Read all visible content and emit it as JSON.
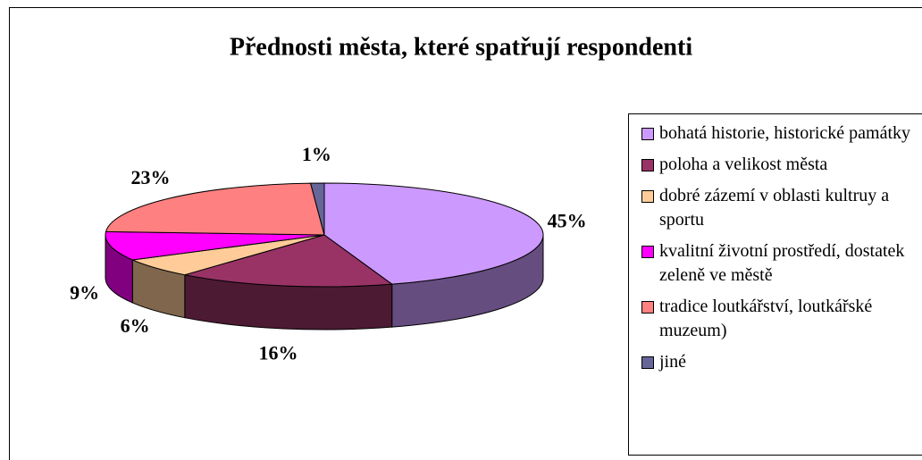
{
  "chart_data": {
    "type": "pie",
    "title": "Přednosti města, které spatřují respondenti",
    "categories": [
      "bohatá historie, historické památky",
      "poloha a velikost města",
      "dobré zázemí v oblasti kultruy a sportu",
      "kvalitní životní prostředí, dostatek zeleně ve městě",
      "tradice loutkářství, loutkářské muzeum)",
      "jiné"
    ],
    "values": [
      45,
      16,
      6,
      9,
      23,
      1
    ],
    "value_labels": [
      "45%",
      "16%",
      "6%",
      "9%",
      "23%",
      "1%"
    ],
    "colors": [
      "#cc99ff",
      "#993366",
      "#ffcc99",
      "#ff00ff",
      "#ff8080",
      "#666699"
    ],
    "legend": "right"
  }
}
